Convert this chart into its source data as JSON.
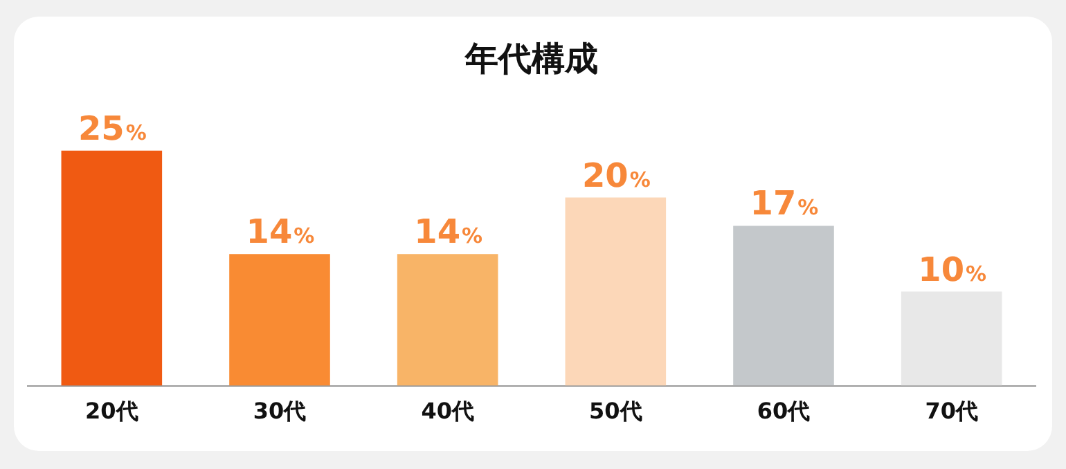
{
  "chart_data": {
    "type": "bar",
    "title": "年代構成",
    "categories": [
      "20代",
      "30代",
      "40代",
      "50代",
      "60代",
      "70代"
    ],
    "values": [
      25,
      14,
      14,
      20,
      17,
      10
    ],
    "colors": [
      "#f05a12",
      "#f98b33",
      "#f8b467",
      "#fcd7b8",
      "#c4c8cb",
      "#e8e8e8"
    ],
    "value_labels": [
      "25%",
      "14%",
      "14%",
      "20%",
      "17%",
      "10%"
    ],
    "legend": false,
    "grid": false
  }
}
